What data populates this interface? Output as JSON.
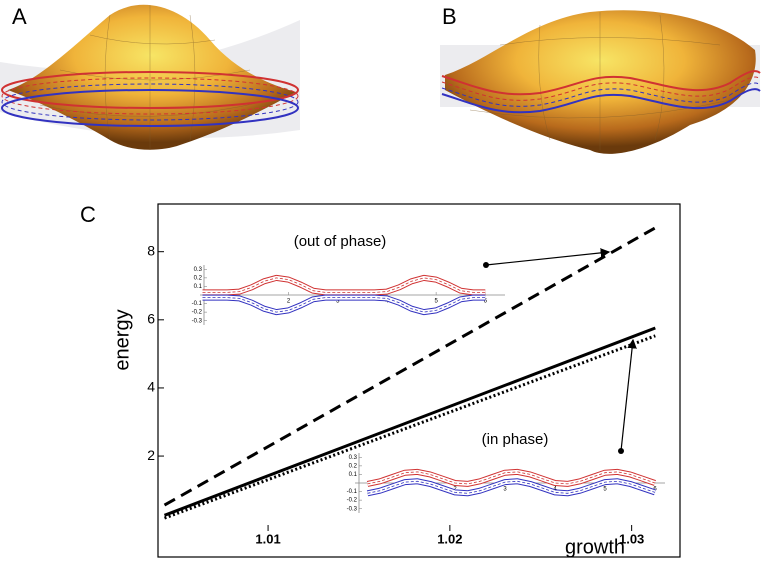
{
  "panel_labels": [
    "A",
    "B",
    "C"
  ],
  "chart_data": [
    {
      "type": "line",
      "x_label": "growth",
      "y_label": "energy",
      "x": [
        1.0043,
        1.0313
      ],
      "series": [
        {
          "color": "#000000",
          "style": "dashed",
          "values": [
            0.56,
            8.7
          ]
        },
        {
          "color": "#000000",
          "style": "solid",
          "values": [
            0.26,
            5.76
          ]
        },
        {
          "color": "#000000",
          "style": "dotted",
          "values": [
            0.18,
            5.53
          ]
        }
      ],
      "xlim": [
        1.004,
        1.032
      ],
      "ylim": [
        -0.2,
        9.4
      ],
      "xticks": [
        1.01,
        1.02,
        1.03
      ],
      "yticks": [
        2,
        4,
        6,
        8
      ],
      "grid": false
    },
    {
      "type": "line",
      "title": "(out of phase)",
      "x": [
        0.25,
        0.5,
        0.75,
        1,
        1.25,
        1.5,
        1.75,
        2,
        2.25,
        2.5,
        2.75,
        3,
        3.25,
        3.5,
        3.75,
        4,
        4.25,
        4.5,
        4.75,
        5,
        5.25,
        5.5,
        5.75,
        6
      ],
      "series": [
        {
          "color": "#d03232",
          "style": "band",
          "values": [
            0.03,
            0.03,
            0.03,
            0.04,
            0.09,
            0.16,
            0.2,
            0.18,
            0.12,
            0.05,
            0.03,
            0.03,
            0.03,
            0.03,
            0.03,
            0.04,
            0.09,
            0.16,
            0.2,
            0.18,
            0.12,
            0.05,
            0.03,
            0.03
          ]
        },
        {
          "color": "#3232c0",
          "style": "band",
          "values": [
            -0.03,
            -0.03,
            -0.03,
            -0.04,
            -0.09,
            -0.16,
            -0.2,
            -0.18,
            -0.12,
            -0.05,
            -0.03,
            -0.03,
            -0.03,
            -0.03,
            -0.03,
            -0.04,
            -0.09,
            -0.16,
            -0.2,
            -0.18,
            -0.12,
            -0.05,
            -0.03,
            -0.03
          ]
        }
      ],
      "xlim": [
        0.2,
        6.4
      ],
      "ylim": [
        -0.35,
        0.35
      ],
      "xticks": [
        2,
        3,
        4,
        5,
        6
      ],
      "yticks": [
        -0.3,
        -0.2,
        -0.1,
        0.1,
        0.2,
        0.3
      ],
      "grid": false
    },
    {
      "type": "line",
      "title": "(in phase)",
      "x": [
        0.25,
        0.5,
        0.75,
        1,
        1.25,
        1.5,
        1.75,
        2,
        2.25,
        2.5,
        2.75,
        3,
        3.25,
        3.5,
        3.75,
        4,
        4.25,
        4.5,
        4.75,
        5,
        5.25,
        5.5,
        5.75,
        6
      ],
      "series": [
        {
          "color": "#d03232",
          "style": "band",
          "values": [
            -0.01,
            0.02,
            0.07,
            0.12,
            0.13,
            0.1,
            0.05,
            0.0,
            -0.01,
            0.02,
            0.07,
            0.12,
            0.13,
            0.1,
            0.05,
            0.0,
            -0.01,
            0.02,
            0.07,
            0.12,
            0.13,
            0.1,
            0.05,
            0.0
          ]
        },
        {
          "color": "#3232c0",
          "style": "band",
          "values": [
            -0.12,
            -0.09,
            -0.04,
            0.01,
            0.02,
            -0.01,
            -0.06,
            -0.11,
            -0.12,
            -0.09,
            -0.04,
            0.01,
            0.02,
            -0.01,
            -0.06,
            -0.11,
            -0.12,
            -0.09,
            -0.04,
            0.01,
            0.02,
            -0.01,
            -0.06,
            -0.11
          ]
        }
      ],
      "xlim": [
        0,
        6.2
      ],
      "ylim": [
        -0.35,
        0.35
      ],
      "xticks": [
        2,
        3,
        4,
        5,
        6
      ],
      "yticks": [
        -0.3,
        -0.2,
        -0.1,
        0.1,
        0.2,
        0.3
      ],
      "grid": false
    }
  ]
}
